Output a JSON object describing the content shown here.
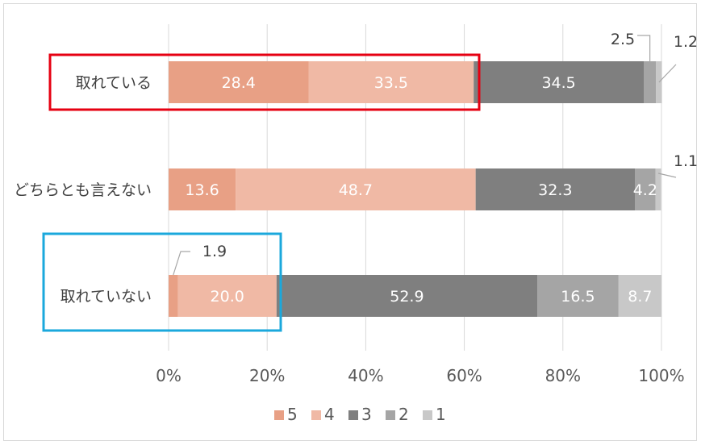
{
  "chart_data": {
    "type": "bar",
    "orientation": "horizontal",
    "stacked": true,
    "percent_stacked": true,
    "categories": [
      "取れている",
      "どちらとも言えない",
      "取れていない"
    ],
    "series": [
      {
        "name": "5",
        "color": "#e8a085",
        "values": [
          28.4,
          13.6,
          1.9
        ]
      },
      {
        "name": "4",
        "color": "#f0b9a5",
        "values": [
          33.5,
          48.7,
          20.0
        ]
      },
      {
        "name": "3",
        "color": "#7f7f7f",
        "values": [
          34.5,
          32.3,
          52.9
        ]
      },
      {
        "name": "2",
        "color": "#a5a5a5",
        "values": [
          2.5,
          4.2,
          16.5
        ]
      },
      {
        "name": "1",
        "color": "#c8c8c8",
        "values": [
          1.2,
          1.1,
          8.7
        ]
      }
    ],
    "data_label_texts": [
      [
        "28.4",
        "33.5",
        "34.5",
        "2.5",
        "1.2"
      ],
      [
        "13.6",
        "48.7",
        "32.3",
        "4.2",
        "1.1"
      ],
      [
        "1.9",
        "20.0",
        "52.9",
        "16.5",
        "8.7"
      ]
    ],
    "xlim": [
      0,
      100
    ],
    "x_ticks": [
      "0%",
      "20%",
      "40%",
      "60%",
      "80%",
      "100%"
    ],
    "grid": true,
    "legend": "bottom",
    "title": "",
    "xlabel": "",
    "ylabel": "",
    "highlights": [
      {
        "category_index": 0,
        "color": "#e60012"
      },
      {
        "category_index": 2,
        "color": "#1ba8dc"
      }
    ]
  }
}
